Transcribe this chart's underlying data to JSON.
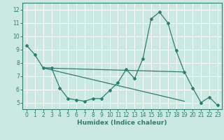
{
  "xlabel": "Humidex (Indice chaleur)",
  "background_color": "#cbe8e3",
  "grid_color": "#ffffff",
  "line_color": "#2e7d6e",
  "xlim": [
    -0.5,
    23.5
  ],
  "ylim": [
    4.5,
    12.5
  ],
  "xticks": [
    0,
    1,
    2,
    3,
    4,
    5,
    6,
    7,
    8,
    9,
    10,
    11,
    12,
    13,
    14,
    15,
    16,
    17,
    18,
    19,
    20,
    21,
    22,
    23
  ],
  "yticks": [
    5,
    6,
    7,
    8,
    9,
    10,
    11,
    12
  ],
  "line1_x": [
    0,
    1,
    2,
    3,
    4,
    5,
    6,
    7,
    8,
    9,
    10,
    11,
    12,
    13,
    14,
    15,
    16,
    17,
    18,
    19,
    20,
    21,
    22,
    23
  ],
  "line1_y": [
    9.3,
    8.6,
    7.6,
    7.6,
    6.1,
    5.3,
    5.2,
    5.1,
    5.3,
    5.3,
    5.9,
    6.5,
    7.5,
    6.8,
    8.3,
    11.3,
    11.8,
    11.0,
    8.9,
    7.3,
    6.1,
    5.0,
    5.4,
    4.8
  ],
  "line2_x": [
    2,
    19
  ],
  "line2_y": [
    7.6,
    7.3
  ],
  "line3_x": [
    2,
    19
  ],
  "line3_y": [
    7.6,
    5.1
  ]
}
